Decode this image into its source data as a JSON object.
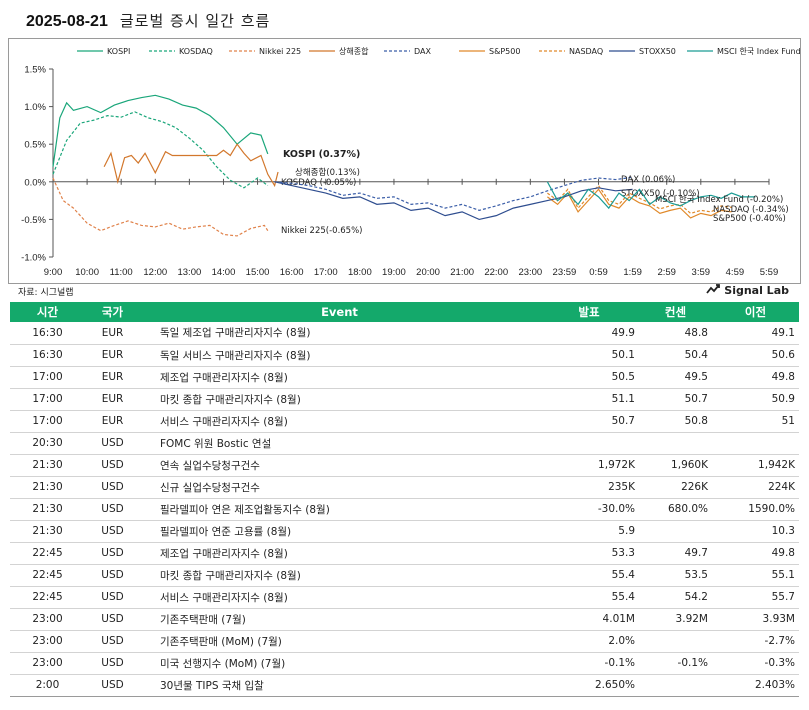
{
  "header": {
    "date": "2025-08-21",
    "title": "글로벌 증시 일간 흐름"
  },
  "source": "자료: 시그널랩",
  "brand": {
    "name": "Signal Lab",
    "icon": "trend-icon"
  },
  "chart_data": {
    "type": "line",
    "title": "",
    "ylim": [
      -1.0,
      1.5
    ],
    "y_ticks": [
      "1.5%",
      "1.0%",
      "0.5%",
      "0.0%",
      "-0.5%",
      "-1.0%"
    ],
    "y_tick_values": [
      1.5,
      1.0,
      0.5,
      0.0,
      -0.5,
      -1.0
    ],
    "x_ticks": [
      "9:00",
      "10:00",
      "11:00",
      "12:00",
      "13:00",
      "14:00",
      "15:00",
      "16:00",
      "17:00",
      "18:00",
      "19:00",
      "20:00",
      "21:00",
      "22:00",
      "23:00",
      "23:59",
      "0:59",
      "1:59",
      "2:59",
      "3:59",
      "4:59",
      "5:59"
    ],
    "grid": false,
    "legend_position": "top",
    "series": [
      {
        "name": "KOSPI",
        "color": "#1aa67a",
        "dash": "solid",
        "end_label": "KOSPI (0.37%)",
        "end_bold": true,
        "x": [
          0,
          0.2,
          0.4,
          0.6,
          1.0,
          1.4,
          1.8,
          2.2,
          2.6,
          3.0,
          3.4,
          3.8,
          4.2,
          4.6,
          5.0,
          5.4,
          5.8,
          6.1,
          6.3
        ],
        "y": [
          0.2,
          0.85,
          1.05,
          0.95,
          1.0,
          0.92,
          1.02,
          1.08,
          1.12,
          1.15,
          1.1,
          1.02,
          0.98,
          0.88,
          0.72,
          0.5,
          0.65,
          0.62,
          0.37
        ]
      },
      {
        "name": "KOSDAQ",
        "color": "#1aa67a",
        "dash": "dashed",
        "end_label": "KOSDAQ (-0.05%)",
        "x": [
          0,
          0.4,
          0.8,
          1.2,
          1.6,
          2.0,
          2.4,
          2.8,
          3.2,
          3.6,
          4.0,
          4.4,
          4.8,
          5.2,
          5.6,
          6.0,
          6.3
        ],
        "y": [
          0.1,
          0.55,
          0.78,
          0.82,
          0.88,
          0.86,
          0.93,
          0.85,
          0.8,
          0.72,
          0.58,
          0.42,
          0.2,
          0.02,
          -0.08,
          0.05,
          -0.05
        ]
      },
      {
        "name": "Nikkei 225",
        "color": "#e0824a",
        "dash": "dashed",
        "end_label": "Nikkei 225(-0.65%)",
        "x": [
          0,
          0.3,
          0.6,
          1.0,
          1.4,
          1.8,
          2.2,
          2.6,
          3.0,
          3.4,
          3.8,
          4.2,
          4.6,
          5.0,
          5.4,
          5.8,
          6.2,
          6.3
        ],
        "y": [
          0.05,
          -0.25,
          -0.35,
          -0.55,
          -0.65,
          -0.58,
          -0.52,
          -0.58,
          -0.6,
          -0.55,
          -0.63,
          -0.6,
          -0.58,
          -0.7,
          -0.72,
          -0.62,
          -0.58,
          -0.65
        ]
      },
      {
        "name": "상해종합",
        "color": "#d2772c",
        "dash": "solid",
        "end_label": "상해종합(0.13%)",
        "x": [
          1.5,
          1.7,
          1.9,
          2.1,
          2.3,
          2.5,
          2.7,
          3.0,
          3.3,
          3.5,
          4.0,
          4.5,
          4.8,
          5.0,
          5.2,
          5.4,
          5.6,
          5.8,
          6.1,
          6.3,
          6.5,
          6.6
        ],
        "y": [
          0.2,
          0.38,
          0.0,
          0.32,
          0.35,
          0.25,
          0.38,
          0.12,
          0.4,
          0.35,
          0.35,
          0.35,
          0.35,
          0.42,
          0.35,
          0.5,
          0.38,
          0.28,
          0.35,
          0.1,
          -0.05,
          0.13
        ]
      },
      {
        "name": "DAX",
        "color": "#3b5ea8",
        "dash": "dashed",
        "end_label": "DAX (0.06%)",
        "x": [
          6.5,
          7.0,
          7.5,
          8.0,
          8.5,
          9.0,
          9.5,
          10.0,
          10.5,
          11.0,
          11.5,
          12.0,
          12.5,
          13.0,
          13.5,
          14.0,
          14.5,
          15.0,
          15.5,
          16.0,
          16.5,
          17.0
        ],
        "y": [
          0.0,
          -0.02,
          -0.05,
          -0.1,
          -0.18,
          -0.15,
          -0.22,
          -0.2,
          -0.3,
          -0.28,
          -0.35,
          -0.3,
          -0.38,
          -0.32,
          -0.25,
          -0.2,
          -0.12,
          -0.05,
          0.02,
          0.05,
          0.03,
          0.06
        ]
      },
      {
        "name": "S&P500",
        "color": "#e0892a",
        "dash": "solid",
        "end_label": "S&P500 (-0.40%)",
        "x": [
          14.5,
          14.8,
          15.1,
          15.4,
          15.7,
          16.0,
          16.3,
          16.6,
          16.9,
          17.2,
          17.5,
          17.8,
          18.1,
          18.4,
          18.7,
          19.0,
          19.3,
          19.6,
          19.9
        ],
        "y": [
          -0.2,
          -0.3,
          -0.15,
          -0.4,
          -0.25,
          -0.1,
          -0.3,
          -0.35,
          -0.2,
          -0.28,
          -0.32,
          -0.42,
          -0.38,
          -0.35,
          -0.48,
          -0.42,
          -0.45,
          -0.38,
          -0.4
        ]
      },
      {
        "name": "NASDAQ",
        "color": "#e0892a",
        "dash": "dashed",
        "end_label": "NASDAQ (-0.34%)",
        "x": [
          14.5,
          14.8,
          15.1,
          15.4,
          15.7,
          16.0,
          16.3,
          16.6,
          16.9,
          17.2,
          17.5,
          17.8,
          18.1,
          18.4,
          18.7,
          19.0,
          19.3,
          19.6,
          19.9
        ],
        "y": [
          -0.15,
          -0.25,
          -0.1,
          -0.35,
          -0.2,
          -0.05,
          -0.25,
          -0.3,
          -0.15,
          -0.22,
          -0.28,
          -0.36,
          -0.32,
          -0.3,
          -0.42,
          -0.38,
          -0.4,
          -0.32,
          -0.34
        ]
      },
      {
        "name": "STOXX50",
        "color": "#2e4d8f",
        "dash": "solid",
        "end_label": "STOXX50 (-0.10%)",
        "x": [
          6.5,
          7.0,
          7.5,
          8.0,
          8.5,
          9.0,
          9.5,
          10.0,
          10.5,
          11.0,
          11.5,
          12.0,
          12.5,
          13.0,
          13.5,
          14.0,
          14.5,
          15.0,
          15.5,
          16.0,
          16.5,
          17.0
        ],
        "y": [
          0.0,
          -0.05,
          -0.1,
          -0.15,
          -0.22,
          -0.2,
          -0.3,
          -0.28,
          -0.38,
          -0.35,
          -0.45,
          -0.4,
          -0.5,
          -0.45,
          -0.35,
          -0.3,
          -0.25,
          -0.2,
          -0.12,
          -0.08,
          -0.12,
          -0.1
        ]
      },
      {
        "name": "MSCI 한국 Index Fund",
        "color": "#1a9c94",
        "dash": "solid",
        "end_label": "MSCI 한국 Index Fund (-0.20%)",
        "x": [
          14.5,
          14.8,
          15.1,
          15.4,
          15.7,
          16.0,
          16.3,
          16.6,
          16.9,
          17.2,
          17.5,
          17.8,
          18.1,
          18.4,
          18.7,
          19.0,
          19.3,
          19.6,
          19.9,
          20.2,
          20.6
        ],
        "y": [
          0.0,
          -0.25,
          -0.15,
          -0.3,
          -0.1,
          -0.2,
          -0.35,
          -0.15,
          -0.25,
          -0.1,
          -0.3,
          -0.2,
          -0.28,
          -0.32,
          -0.25,
          -0.2,
          -0.18,
          -0.22,
          -0.15,
          -0.2,
          -0.2
        ]
      }
    ]
  },
  "table": {
    "headers": {
      "time": "시간",
      "country": "국가",
      "event": "Event",
      "actual": "발표",
      "consensus": "컨센",
      "previous": "이전"
    },
    "rows": [
      {
        "time": "16:30",
        "country": "EUR",
        "event": "독일 제조업 구매관리자지수 (8월)",
        "actual": "49.9",
        "consensus": "48.8",
        "previous": "49.1"
      },
      {
        "time": "16:30",
        "country": "EUR",
        "event": "독일 서비스 구매관리자지수 (8월)",
        "actual": "50.1",
        "consensus": "50.4",
        "previous": "50.6"
      },
      {
        "time": "17:00",
        "country": "EUR",
        "event": "제조업 구매관리자지수 (8월)",
        "actual": "50.5",
        "consensus": "49.5",
        "previous": "49.8"
      },
      {
        "time": "17:00",
        "country": "EUR",
        "event": "마킷 종합 구매관리자지수 (8월)",
        "actual": "51.1",
        "consensus": "50.7",
        "previous": "50.9"
      },
      {
        "time": "17:00",
        "country": "EUR",
        "event": "서비스 구매관리자지수 (8월)",
        "actual": "50.7",
        "consensus": "50.8",
        "previous": "51"
      },
      {
        "time": "20:30",
        "country": "USD",
        "event": "FOMC 위원 Bostic 연설",
        "actual": "",
        "consensus": "",
        "previous": ""
      },
      {
        "time": "21:30",
        "country": "USD",
        "event": "연속 실업수당청구건수",
        "actual": "1,972K",
        "consensus": "1,960K",
        "previous": "1,942K"
      },
      {
        "time": "21:30",
        "country": "USD",
        "event": "신규 실업수당청구건수",
        "actual": "235K",
        "consensus": "226K",
        "previous": "224K"
      },
      {
        "time": "21:30",
        "country": "USD",
        "event": "필라델피아 연은 제조업활동지수 (8월)",
        "actual": "-30.0%",
        "consensus": "680.0%",
        "previous": "1590.0%"
      },
      {
        "time": "21:30",
        "country": "USD",
        "event": "필라델피아 연준 고용률 (8월)",
        "actual": "5.9",
        "consensus": "",
        "previous": "10.3"
      },
      {
        "time": "22:45",
        "country": "USD",
        "event": "제조업 구매관리자지수 (8월)",
        "actual": "53.3",
        "consensus": "49.7",
        "previous": "49.8"
      },
      {
        "time": "22:45",
        "country": "USD",
        "event": "마킷 종합 구매관리자지수 (8월)",
        "actual": "55.4",
        "consensus": "53.5",
        "previous": "55.1"
      },
      {
        "time": "22:45",
        "country": "USD",
        "event": "서비스 구매관리자지수 (8월)",
        "actual": "55.4",
        "consensus": "54.2",
        "previous": "55.7"
      },
      {
        "time": "23:00",
        "country": "USD",
        "event": "기존주택판매 (7월)",
        "actual": "4.01M",
        "consensus": "3.92M",
        "previous": "3.93M"
      },
      {
        "time": "23:00",
        "country": "USD",
        "event": "기존주택판매 (MoM) (7월)",
        "actual": "2.0%",
        "consensus": "",
        "previous": "-2.7%"
      },
      {
        "time": "23:00",
        "country": "USD",
        "event": "미국 선행지수 (MoM) (7월)",
        "actual": "-0.1%",
        "consensus": "-0.1%",
        "previous": "-0.3%"
      },
      {
        "time": "2:00",
        "country": "USD",
        "event": "30년물 TIPS 국채 입찰",
        "actual": "2.650%",
        "consensus": "",
        "previous": "2.403%"
      }
    ]
  }
}
